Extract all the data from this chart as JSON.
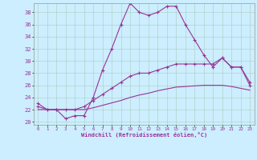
{
  "xlabel": "Windchill (Refroidissement éolien,°C)",
  "background_color": "#cceeff",
  "grid_color": "#aaccbb",
  "line_color": "#993399",
  "xlim": [
    -0.5,
    23.5
  ],
  "ylim": [
    19.5,
    39.5
  ],
  "yticks": [
    20,
    22,
    24,
    26,
    28,
    30,
    32,
    34,
    36,
    38
  ],
  "xticks": [
    0,
    1,
    2,
    3,
    4,
    5,
    6,
    7,
    8,
    9,
    10,
    11,
    12,
    13,
    14,
    15,
    16,
    17,
    18,
    19,
    20,
    21,
    22,
    23
  ],
  "line1_x": [
    0,
    1,
    2,
    3,
    4,
    5,
    6,
    7,
    8,
    9,
    10,
    11,
    12,
    13,
    14,
    15,
    16,
    17,
    18,
    19,
    20,
    21,
    22,
    23
  ],
  "line1_y": [
    23,
    22,
    22,
    20.5,
    21,
    21,
    24,
    28.5,
    32,
    36,
    39.5,
    38,
    37.5,
    38,
    39,
    39,
    36,
    33.5,
    31,
    29,
    30.5,
    29,
    29,
    26
  ],
  "line2_x": [
    0,
    1,
    2,
    3,
    4,
    5,
    6,
    7,
    8,
    9,
    10,
    11,
    12,
    13,
    14,
    15,
    16,
    17,
    18,
    19,
    20,
    21,
    22,
    23
  ],
  "line2_y": [
    22.5,
    22,
    22,
    22,
    22,
    22.5,
    23.5,
    24.5,
    25.5,
    26.5,
    27.5,
    28,
    28,
    28.5,
    29,
    29.5,
    29.5,
    29.5,
    29.5,
    29.5,
    30.5,
    29,
    29,
    26.5
  ],
  "line3_x": [
    0,
    1,
    2,
    3,
    4,
    5,
    6,
    7,
    8,
    9,
    10,
    11,
    12,
    13,
    14,
    15,
    16,
    17,
    18,
    19,
    20,
    21,
    22,
    23
  ],
  "line3_y": [
    22,
    22,
    22,
    22,
    22,
    22,
    22.3,
    22.7,
    23.1,
    23.5,
    24,
    24.4,
    24.7,
    25.1,
    25.4,
    25.7,
    25.8,
    25.9,
    26,
    26,
    26,
    25.8,
    25.5,
    25.2
  ]
}
